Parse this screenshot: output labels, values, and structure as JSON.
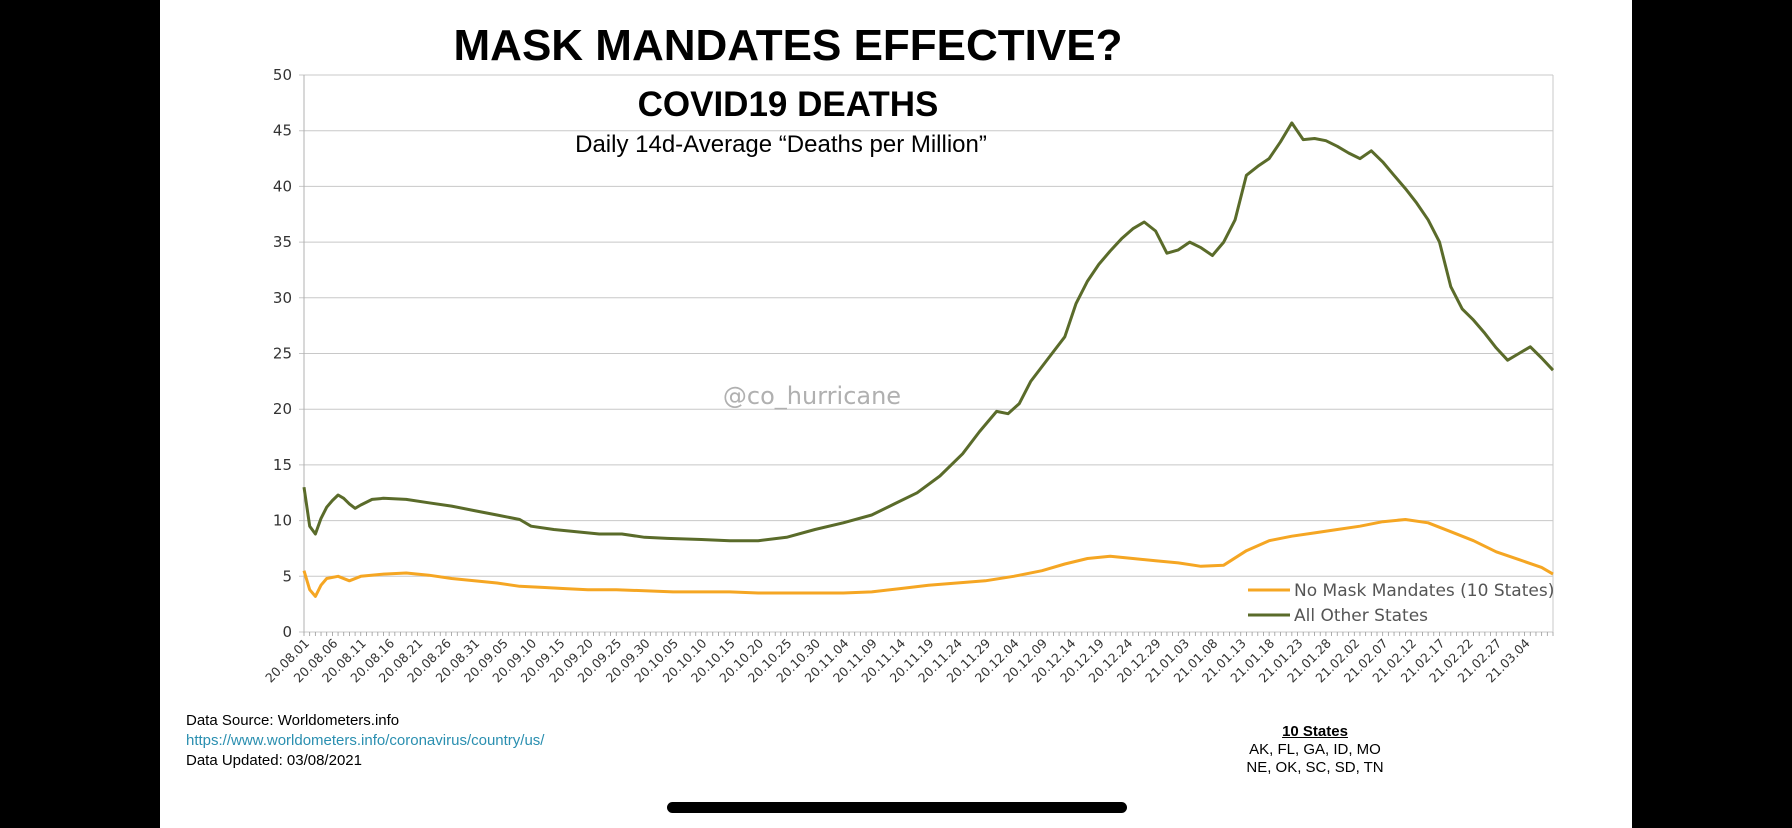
{
  "chart_data": {
    "type": "line",
    "title": "MASK MANDATES EFFECTIVE?",
    "subtitle": "COVID19 DEATHS",
    "caption": "Daily 14d-Average “Deaths per Million”",
    "watermark": "@co_hurricane",
    "xlabel": "",
    "ylabel": "",
    "ylim": [
      0,
      50
    ],
    "yticks": [
      0,
      5,
      10,
      15,
      20,
      25,
      30,
      35,
      40,
      45,
      50
    ],
    "grid": true,
    "legend_position": "bottom-right",
    "x_start": "2020-08-01",
    "num_days": 221,
    "xtick_labels": [
      "20.08.01",
      "20.08.06",
      "20.08.11",
      "20.08.16",
      "20.08.21",
      "20.08.26",
      "20.08.31",
      "20.09.05",
      "20.09.10",
      "20.09.15",
      "20.09.20",
      "20.09.25",
      "20.09.30",
      "20.10.05",
      "20.10.10",
      "20.10.15",
      "20.10.20",
      "20.10.25",
      "20.10.30",
      "20.11.04",
      "20.11.09",
      "20.11.14",
      "20.11.19",
      "20.11.24",
      "20.11.29",
      "20.12.04",
      "20.12.09",
      "20.12.14",
      "20.12.19",
      "20.12.24",
      "20.12.29",
      "21.01.03",
      "21.01.08",
      "21.01.13",
      "21.01.18",
      "21.01.23",
      "21.01.28",
      "21.02.02",
      "21.02.07",
      "21.02.12",
      "21.02.17",
      "21.02.22",
      "21.02.27",
      "21.03.04"
    ],
    "series": [
      {
        "name": "No Mask Mandates (10 States)",
        "color": "#f5a623",
        "points": [
          [
            0,
            5.5
          ],
          [
            1,
            3.8
          ],
          [
            2,
            3.2
          ],
          [
            3,
            4.2
          ],
          [
            4,
            4.8
          ],
          [
            6,
            5.0
          ],
          [
            8,
            4.6
          ],
          [
            10,
            5.0
          ],
          [
            14,
            5.2
          ],
          [
            18,
            5.3
          ],
          [
            22,
            5.1
          ],
          [
            26,
            4.8
          ],
          [
            30,
            4.6
          ],
          [
            34,
            4.4
          ],
          [
            38,
            4.1
          ],
          [
            42,
            4.0
          ],
          [
            46,
            3.9
          ],
          [
            50,
            3.8
          ],
          [
            55,
            3.8
          ],
          [
            60,
            3.7
          ],
          [
            65,
            3.6
          ],
          [
            70,
            3.6
          ],
          [
            75,
            3.6
          ],
          [
            80,
            3.5
          ],
          [
            85,
            3.5
          ],
          [
            90,
            3.5
          ],
          [
            95,
            3.5
          ],
          [
            100,
            3.6
          ],
          [
            105,
            3.9
          ],
          [
            110,
            4.2
          ],
          [
            115,
            4.4
          ],
          [
            120,
            4.6
          ],
          [
            125,
            5.0
          ],
          [
            130,
            5.5
          ],
          [
            134,
            6.1
          ],
          [
            138,
            6.6
          ],
          [
            142,
            6.8
          ],
          [
            146,
            6.6
          ],
          [
            150,
            6.4
          ],
          [
            154,
            6.2
          ],
          [
            158,
            5.9
          ],
          [
            162,
            6.0
          ],
          [
            166,
            7.3
          ],
          [
            170,
            8.2
          ],
          [
            174,
            8.6
          ],
          [
            178,
            8.9
          ],
          [
            182,
            9.2
          ],
          [
            186,
            9.5
          ],
          [
            190,
            9.9
          ],
          [
            194,
            10.1
          ],
          [
            198,
            9.8
          ],
          [
            202,
            9.0
          ],
          [
            206,
            8.2
          ],
          [
            210,
            7.2
          ],
          [
            214,
            6.5
          ],
          [
            218,
            5.8
          ],
          [
            220,
            5.2
          ]
        ]
      },
      {
        "name": "All Other States",
        "color": "#5a6b2a",
        "points": [
          [
            0,
            13.0
          ],
          [
            1,
            9.5
          ],
          [
            2,
            8.8
          ],
          [
            3,
            10.2
          ],
          [
            4,
            11.2
          ],
          [
            5,
            11.8
          ],
          [
            6,
            12.3
          ],
          [
            7,
            12.0
          ],
          [
            8,
            11.5
          ],
          [
            9,
            11.1
          ],
          [
            10,
            11.4
          ],
          [
            12,
            11.9
          ],
          [
            14,
            12.0
          ],
          [
            18,
            11.9
          ],
          [
            22,
            11.6
          ],
          [
            26,
            11.3
          ],
          [
            30,
            10.9
          ],
          [
            34,
            10.5
          ],
          [
            38,
            10.1
          ],
          [
            40,
            9.5
          ],
          [
            44,
            9.2
          ],
          [
            48,
            9.0
          ],
          [
            52,
            8.8
          ],
          [
            56,
            8.8
          ],
          [
            60,
            8.5
          ],
          [
            64,
            8.4
          ],
          [
            70,
            8.3
          ],
          [
            75,
            8.2
          ],
          [
            80,
            8.2
          ],
          [
            85,
            8.5
          ],
          [
            90,
            9.2
          ],
          [
            95,
            9.8
          ],
          [
            100,
            10.5
          ],
          [
            104,
            11.5
          ],
          [
            108,
            12.5
          ],
          [
            112,
            14.0
          ],
          [
            116,
            16.0
          ],
          [
            119,
            18.0
          ],
          [
            122,
            19.8
          ],
          [
            124,
            19.6
          ],
          [
            126,
            20.5
          ],
          [
            128,
            22.5
          ],
          [
            131,
            24.5
          ],
          [
            134,
            26.5
          ],
          [
            136,
            29.5
          ],
          [
            138,
            31.5
          ],
          [
            140,
            33.0
          ],
          [
            142,
            34.2
          ],
          [
            144,
            35.3
          ],
          [
            146,
            36.2
          ],
          [
            148,
            36.8
          ],
          [
            150,
            36.0
          ],
          [
            152,
            34.0
          ],
          [
            154,
            34.3
          ],
          [
            156,
            35.0
          ],
          [
            158,
            34.5
          ],
          [
            160,
            33.8
          ],
          [
            162,
            35.0
          ],
          [
            164,
            37.0
          ],
          [
            166,
            41.0
          ],
          [
            168,
            41.8
          ],
          [
            170,
            42.5
          ],
          [
            172,
            44.0
          ],
          [
            174,
            45.7
          ],
          [
            176,
            44.2
          ],
          [
            178,
            44.3
          ],
          [
            180,
            44.1
          ],
          [
            182,
            43.6
          ],
          [
            184,
            43.0
          ],
          [
            186,
            42.5
          ],
          [
            188,
            43.2
          ],
          [
            190,
            42.2
          ],
          [
            192,
            41.0
          ],
          [
            194,
            39.8
          ],
          [
            196,
            38.5
          ],
          [
            198,
            37.0
          ],
          [
            200,
            35.0
          ],
          [
            202,
            31.0
          ],
          [
            204,
            29.0
          ],
          [
            206,
            28.0
          ],
          [
            208,
            26.8
          ],
          [
            210,
            25.5
          ],
          [
            212,
            24.4
          ],
          [
            214,
            25.0
          ],
          [
            216,
            25.6
          ],
          [
            218,
            24.6
          ],
          [
            220,
            23.5
          ]
        ]
      }
    ]
  },
  "footer": {
    "source_label": "Data Source: Worldometers.info",
    "source_url": "https://www.worldometers.info/coronavirus/country/us/",
    "updated_label": "Data Updated:  03/08/2021"
  },
  "states_box": {
    "heading": "10 States",
    "line1": "AK, FL, GA, ID, MO",
    "line2": "NE, OK, SC, SD, TN"
  }
}
